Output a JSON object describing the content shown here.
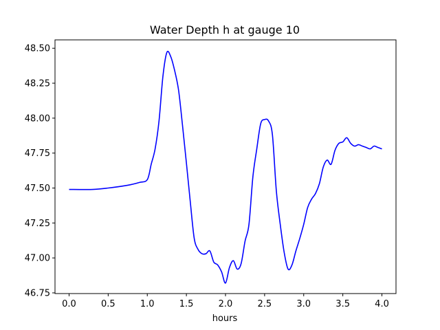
{
  "chart_data": {
    "type": "line",
    "title": "Water Depth h at gauge 10",
    "xlabel": "hours",
    "ylabel": "",
    "xlim": [
      -0.18,
      4.18
    ],
    "ylim": [
      46.745,
      48.56
    ],
    "xticks": [
      0.0,
      0.5,
      1.0,
      1.5,
      2.0,
      2.5,
      3.0,
      3.5,
      4.0
    ],
    "xtick_labels": [
      "0.0",
      "0.5",
      "1.0",
      "1.5",
      "2.0",
      "2.5",
      "3.0",
      "3.5",
      "4.0"
    ],
    "yticks": [
      46.75,
      47.0,
      47.25,
      47.5,
      47.75,
      48.0,
      48.25,
      48.5
    ],
    "ytick_labels": [
      "46.75",
      "47.00",
      "47.25",
      "47.50",
      "47.75",
      "48.00",
      "48.25",
      "48.50"
    ],
    "grid": false,
    "legend": "none",
    "series": [
      {
        "color": "#0000ff",
        "x": [
          0.0,
          0.3,
          0.5,
          0.75,
          0.9,
          1.0,
          1.05,
          1.1,
          1.15,
          1.2,
          1.25,
          1.3,
          1.35,
          1.4,
          1.45,
          1.5,
          1.55,
          1.6,
          1.65,
          1.7,
          1.75,
          1.8,
          1.85,
          1.9,
          1.95,
          2.0,
          2.05,
          2.1,
          2.15,
          2.2,
          2.25,
          2.3,
          2.35,
          2.4,
          2.45,
          2.5,
          2.55,
          2.6,
          2.65,
          2.7,
          2.75,
          2.8,
          2.85,
          2.9,
          2.95,
          3.0,
          3.05,
          3.1,
          3.15,
          3.2,
          3.25,
          3.3,
          3.35,
          3.4,
          3.45,
          3.5,
          3.55,
          3.6,
          3.65,
          3.7,
          3.75,
          3.8,
          3.85,
          3.9,
          3.95,
          4.0
        ],
        "y": [
          47.49,
          47.49,
          47.5,
          47.52,
          47.54,
          47.56,
          47.67,
          47.78,
          47.98,
          48.3,
          48.47,
          48.44,
          48.34,
          48.2,
          47.95,
          47.68,
          47.4,
          47.14,
          47.06,
          47.03,
          47.03,
          47.05,
          46.97,
          46.95,
          46.9,
          46.82,
          46.93,
          46.98,
          46.92,
          46.96,
          47.12,
          47.24,
          47.58,
          47.78,
          47.96,
          47.99,
          47.98,
          47.88,
          47.48,
          47.24,
          47.04,
          46.92,
          46.95,
          47.05,
          47.14,
          47.24,
          47.36,
          47.42,
          47.46,
          47.53,
          47.65,
          47.7,
          47.67,
          47.77,
          47.82,
          47.83,
          47.86,
          47.82,
          47.8,
          47.81,
          47.8,
          47.79,
          47.78,
          47.8,
          47.79,
          47.78
        ]
      }
    ]
  }
}
